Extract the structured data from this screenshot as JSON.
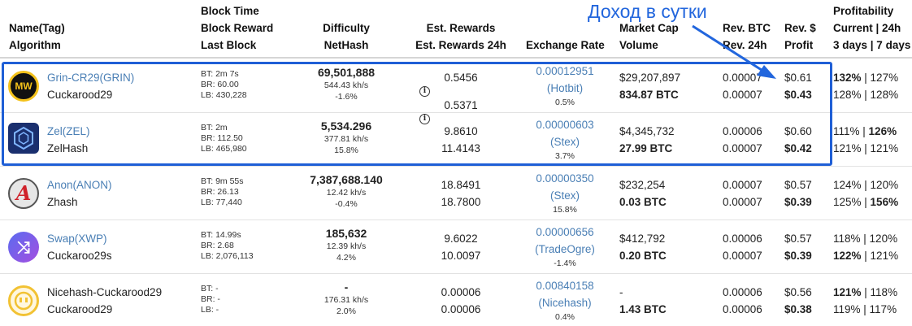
{
  "headers": {
    "name": [
      "Name(Tag)",
      "Algorithm"
    ],
    "block": [
      "Block Time",
      "Block Reward",
      "Last Block"
    ],
    "difficulty": [
      "Difficulty",
      "NetHash"
    ],
    "rewards": [
      "Est. Rewards",
      "Est. Rewards 24h"
    ],
    "exchange": [
      "Exchange Rate"
    ],
    "market": [
      "Market Cap",
      "Volume"
    ],
    "revbtc": [
      "Rev. BTC",
      "Rev. 24h"
    ],
    "revusd": [
      "Rev. $",
      "Profit"
    ],
    "profit": [
      "Profitability",
      "Current | 24h",
      "3 days | 7 days"
    ]
  },
  "annotation": "Доход в сутки",
  "rows": [
    {
      "coin": "Grin-CR29(GRIN)",
      "algo": "Cuckarood29",
      "logo_text": "MW",
      "bt": "BT: 2m 7s",
      "br": "BR: 60.00",
      "lb": "LB: 430,228",
      "difficulty": "69,501,888",
      "nethash": "544.43 kh/s",
      "diff_change": "-1.6%",
      "est": "0.5456",
      "est24": "0.5371",
      "info_icon": "i",
      "rate": "0.00012951",
      "market": "(Hotbit)",
      "rate_change": "0.5%",
      "mcap": "$29,207,897",
      "volume": "834.87 BTC",
      "rev_btc": "0.00007",
      "rev_24h": "0.00007",
      "rev_usd": "$0.61",
      "profit": "$0.43",
      "cur": "132%",
      "d24": "127%",
      "d3": "128%",
      "d7": "128%"
    },
    {
      "coin": "Zel(ZEL)",
      "algo": "ZelHash",
      "logo_text": "",
      "bt": "BT: 2m",
      "br": "BR: 112.50",
      "lb": "LB: 465,980",
      "difficulty": "5,534.296",
      "nethash": "377.81 kh/s",
      "diff_change": "15.8%",
      "est": "9.8610",
      "est24": "11.4143",
      "info_icon": "",
      "rate": "0.00000603",
      "market": "(Stex)",
      "rate_change": "3.7%",
      "mcap": "$4,345,732",
      "volume": "27.99 BTC",
      "rev_btc": "0.00006",
      "rev_24h": "0.00007",
      "rev_usd": "$0.60",
      "profit": "$0.42",
      "cur": "111%",
      "d24": "126%",
      "d3": "121%",
      "d7": "121%"
    },
    {
      "coin": "Anon(ANON)",
      "algo": "Zhash",
      "logo_text": "A",
      "bt": "BT: 9m 55s",
      "br": "BR: 26.13",
      "lb": "LB: 77,440",
      "difficulty": "7,387,688.140",
      "nethash": "12.42 kh/s",
      "diff_change": "-0.4%",
      "est": "18.8491",
      "est24": "18.7800",
      "info_icon": "",
      "rate": "0.00000350",
      "market": "(Stex)",
      "rate_change": "15.8%",
      "mcap": "$232,254",
      "volume": "0.03 BTC",
      "rev_btc": "0.00007",
      "rev_24h": "0.00007",
      "rev_usd": "$0.57",
      "profit": "$0.39",
      "cur": "124%",
      "d24": "120%",
      "d3": "125%",
      "d7": "156%"
    },
    {
      "coin": "Swap(XWP)",
      "algo": "Cuckaroo29s",
      "logo_text": "⤨",
      "bt": "BT: 14.99s",
      "br": "BR: 2.68",
      "lb": "LB: 2,076,113",
      "difficulty": "185,632",
      "nethash": "12.39 kh/s",
      "diff_change": "4.2%",
      "est": "9.6022",
      "est24": "10.0097",
      "info_icon": "",
      "rate": "0.00000656",
      "market": "(TradeOgre)",
      "rate_change": "-1.4%",
      "mcap": "$412,792",
      "volume": "0.20 BTC",
      "rev_btc": "0.00006",
      "rev_24h": "0.00007",
      "rev_usd": "$0.57",
      "profit": "$0.39",
      "cur": "118%",
      "d24": "120%",
      "d3": "122%",
      "d7": "121%"
    },
    {
      "coin": "Nicehash-Cuckarood29",
      "algo": "Cuckarood29",
      "logo_text": "",
      "bt": "BT: -",
      "br": "BR: -",
      "lb": "LB: -",
      "difficulty": "-",
      "nethash": "176.31 kh/s",
      "diff_change": "2.0%",
      "est": "0.00006",
      "est24": "0.00006",
      "info_icon": "",
      "rate": "0.00840158",
      "market": "(Nicehash)",
      "rate_change": "0.4%",
      "mcap": "-",
      "volume": "1.43 BTC",
      "rev_btc": "0.00006",
      "rev_24h": "0.00006",
      "rev_usd": "$0.56",
      "profit": "$0.38",
      "cur": "121%",
      "d24": "118%",
      "d3": "119%",
      "d7": "117%"
    }
  ]
}
